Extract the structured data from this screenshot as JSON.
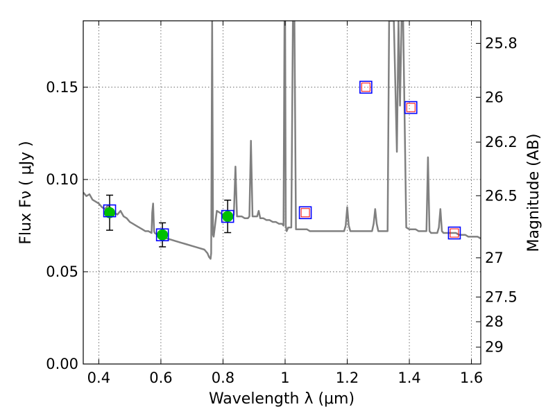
{
  "chart_data": {
    "type": "scatter",
    "title": "",
    "xlabel": "Wavelength  λ (μm)",
    "ylabel": "Flux  Fν  ( μJy )",
    "ylabel2": "Magnitude (AB)",
    "xlim": [
      0.35,
      1.63
    ],
    "ylim": [
      0.0,
      0.186
    ],
    "grid": true,
    "x_ticks": [
      {
        "value": 0.4,
        "label": "0.4"
      },
      {
        "value": 0.6,
        "label": "0.6"
      },
      {
        "value": 0.8,
        "label": "0.8"
      },
      {
        "value": 1.0,
        "label": "1"
      },
      {
        "value": 1.2,
        "label": "1.2"
      },
      {
        "value": 1.4,
        "label": "1.4"
      },
      {
        "value": 1.6,
        "label": "1.6"
      }
    ],
    "y_ticks": [
      {
        "value": 0.0,
        "label": "0.00"
      },
      {
        "value": 0.05,
        "label": "0.05"
      },
      {
        "value": 0.1,
        "label": "0.10"
      },
      {
        "value": 0.15,
        "label": "0.15"
      }
    ],
    "right_ticks": [
      {
        "mag": 25.8,
        "label": "25.8"
      },
      {
        "mag": 26.0,
        "label": "26"
      },
      {
        "mag": 26.2,
        "label": "26.2"
      },
      {
        "mag": 26.5,
        "label": "26.5"
      },
      {
        "mag": 27.0,
        "label": "27"
      },
      {
        "mag": 27.5,
        "label": "27.5"
      },
      {
        "mag": 28.0,
        "label": "28"
      },
      {
        "mag": 29.0,
        "label": "29"
      }
    ],
    "series": [
      {
        "kind": "line",
        "color": "#808080",
        "x": [
          0.35,
          0.36,
          0.37,
          0.38,
          0.39,
          0.4,
          0.41,
          0.42,
          0.43,
          0.44,
          0.45,
          0.46,
          0.47,
          0.48,
          0.49,
          0.5,
          0.51,
          0.52,
          0.53,
          0.54,
          0.55,
          0.56,
          0.57,
          0.572,
          0.575,
          0.578,
          0.58,
          0.6,
          0.62,
          0.64,
          0.66,
          0.68,
          0.7,
          0.72,
          0.74,
          0.75,
          0.755,
          0.76,
          0.762,
          0.765,
          0.768,
          0.77,
          0.78,
          0.79,
          0.8,
          0.81,
          0.82,
          0.83,
          0.835,
          0.84,
          0.845,
          0.85,
          0.86,
          0.87,
          0.88,
          0.885,
          0.89,
          0.895,
          0.9,
          0.91,
          0.915,
          0.92,
          0.93,
          0.94,
          0.95,
          0.96,
          0.97,
          0.98,
          0.99,
          0.995,
          0.998,
          1.0,
          1.002,
          1.005,
          1.01,
          1.02,
          1.025,
          1.03,
          1.035,
          1.04,
          1.05,
          1.06,
          1.07,
          1.08,
          1.09,
          1.1,
          1.12,
          1.14,
          1.16,
          1.18,
          1.19,
          1.195,
          1.2,
          1.205,
          1.21,
          1.22,
          1.24,
          1.26,
          1.27,
          1.28,
          1.285,
          1.29,
          1.295,
          1.3,
          1.31,
          1.32,
          1.33,
          1.335,
          1.34,
          1.35,
          1.36,
          1.365,
          1.37,
          1.375,
          1.38,
          1.39,
          1.4,
          1.41,
          1.42,
          1.43,
          1.44,
          1.45,
          1.455,
          1.46,
          1.465,
          1.47,
          1.48,
          1.49,
          1.495,
          1.5,
          1.505,
          1.51,
          1.52,
          1.53,
          1.54,
          1.55,
          1.56,
          1.57,
          1.58,
          1.59,
          1.6,
          1.61,
          1.62,
          1.63
        ],
        "y": [
          0.093,
          0.091,
          0.092,
          0.089,
          0.088,
          0.087,
          0.085,
          0.084,
          0.086,
          0.084,
          0.082,
          0.081,
          0.083,
          0.08,
          0.079,
          0.077,
          0.076,
          0.075,
          0.074,
          0.073,
          0.072,
          0.072,
          0.071,
          0.082,
          0.087,
          0.072,
          0.071,
          0.069,
          0.068,
          0.067,
          0.066,
          0.065,
          0.064,
          0.063,
          0.062,
          0.06,
          0.058,
          0.057,
          0.06,
          0.186,
          0.07,
          0.069,
          0.083,
          0.082,
          0.081,
          0.08,
          0.08,
          0.079,
          0.081,
          0.107,
          0.08,
          0.08,
          0.08,
          0.079,
          0.079,
          0.08,
          0.121,
          0.08,
          0.08,
          0.08,
          0.083,
          0.079,
          0.079,
          0.078,
          0.078,
          0.077,
          0.077,
          0.076,
          0.076,
          0.075,
          0.186,
          0.186,
          0.075,
          0.072,
          0.074,
          0.074,
          0.186,
          0.186,
          0.073,
          0.073,
          0.073,
          0.073,
          0.073,
          0.072,
          0.072,
          0.072,
          0.072,
          0.072,
          0.072,
          0.072,
          0.072,
          0.075,
          0.085,
          0.075,
          0.072,
          0.072,
          0.072,
          0.072,
          0.072,
          0.072,
          0.076,
          0.084,
          0.076,
          0.072,
          0.072,
          0.072,
          0.072,
          0.186,
          0.186,
          0.186,
          0.115,
          0.186,
          0.14,
          0.186,
          0.186,
          0.074,
          0.073,
          0.073,
          0.073,
          0.072,
          0.072,
          0.072,
          0.072,
          0.112,
          0.072,
          0.071,
          0.071,
          0.071,
          0.074,
          0.084,
          0.072,
          0.071,
          0.071,
          0.071,
          0.071,
          0.071,
          0.07,
          0.07,
          0.07,
          0.069,
          0.069,
          0.069,
          0.069,
          0.068
        ]
      },
      {
        "kind": "points",
        "color": "#00c000",
        "x": [
          0.435,
          0.605,
          0.815
        ],
        "y": [
          0.082,
          0.07,
          0.08
        ],
        "yerr": [
          0.0095,
          0.0065,
          0.0088
        ]
      },
      {
        "kind": "squares",
        "color": "#0000ff",
        "x": [
          0.435,
          0.605,
          0.815,
          1.065,
          1.26,
          1.405,
          1.545
        ],
        "y": [
          0.083,
          0.07,
          0.08,
          0.082,
          0.15,
          0.139,
          0.071
        ]
      },
      {
        "kind": "inner_squares",
        "color": "#ff0000",
        "x": [
          1.065,
          1.26,
          1.405,
          1.545
        ],
        "y": [
          0.082,
          0.15,
          0.139,
          0.071
        ]
      }
    ]
  }
}
